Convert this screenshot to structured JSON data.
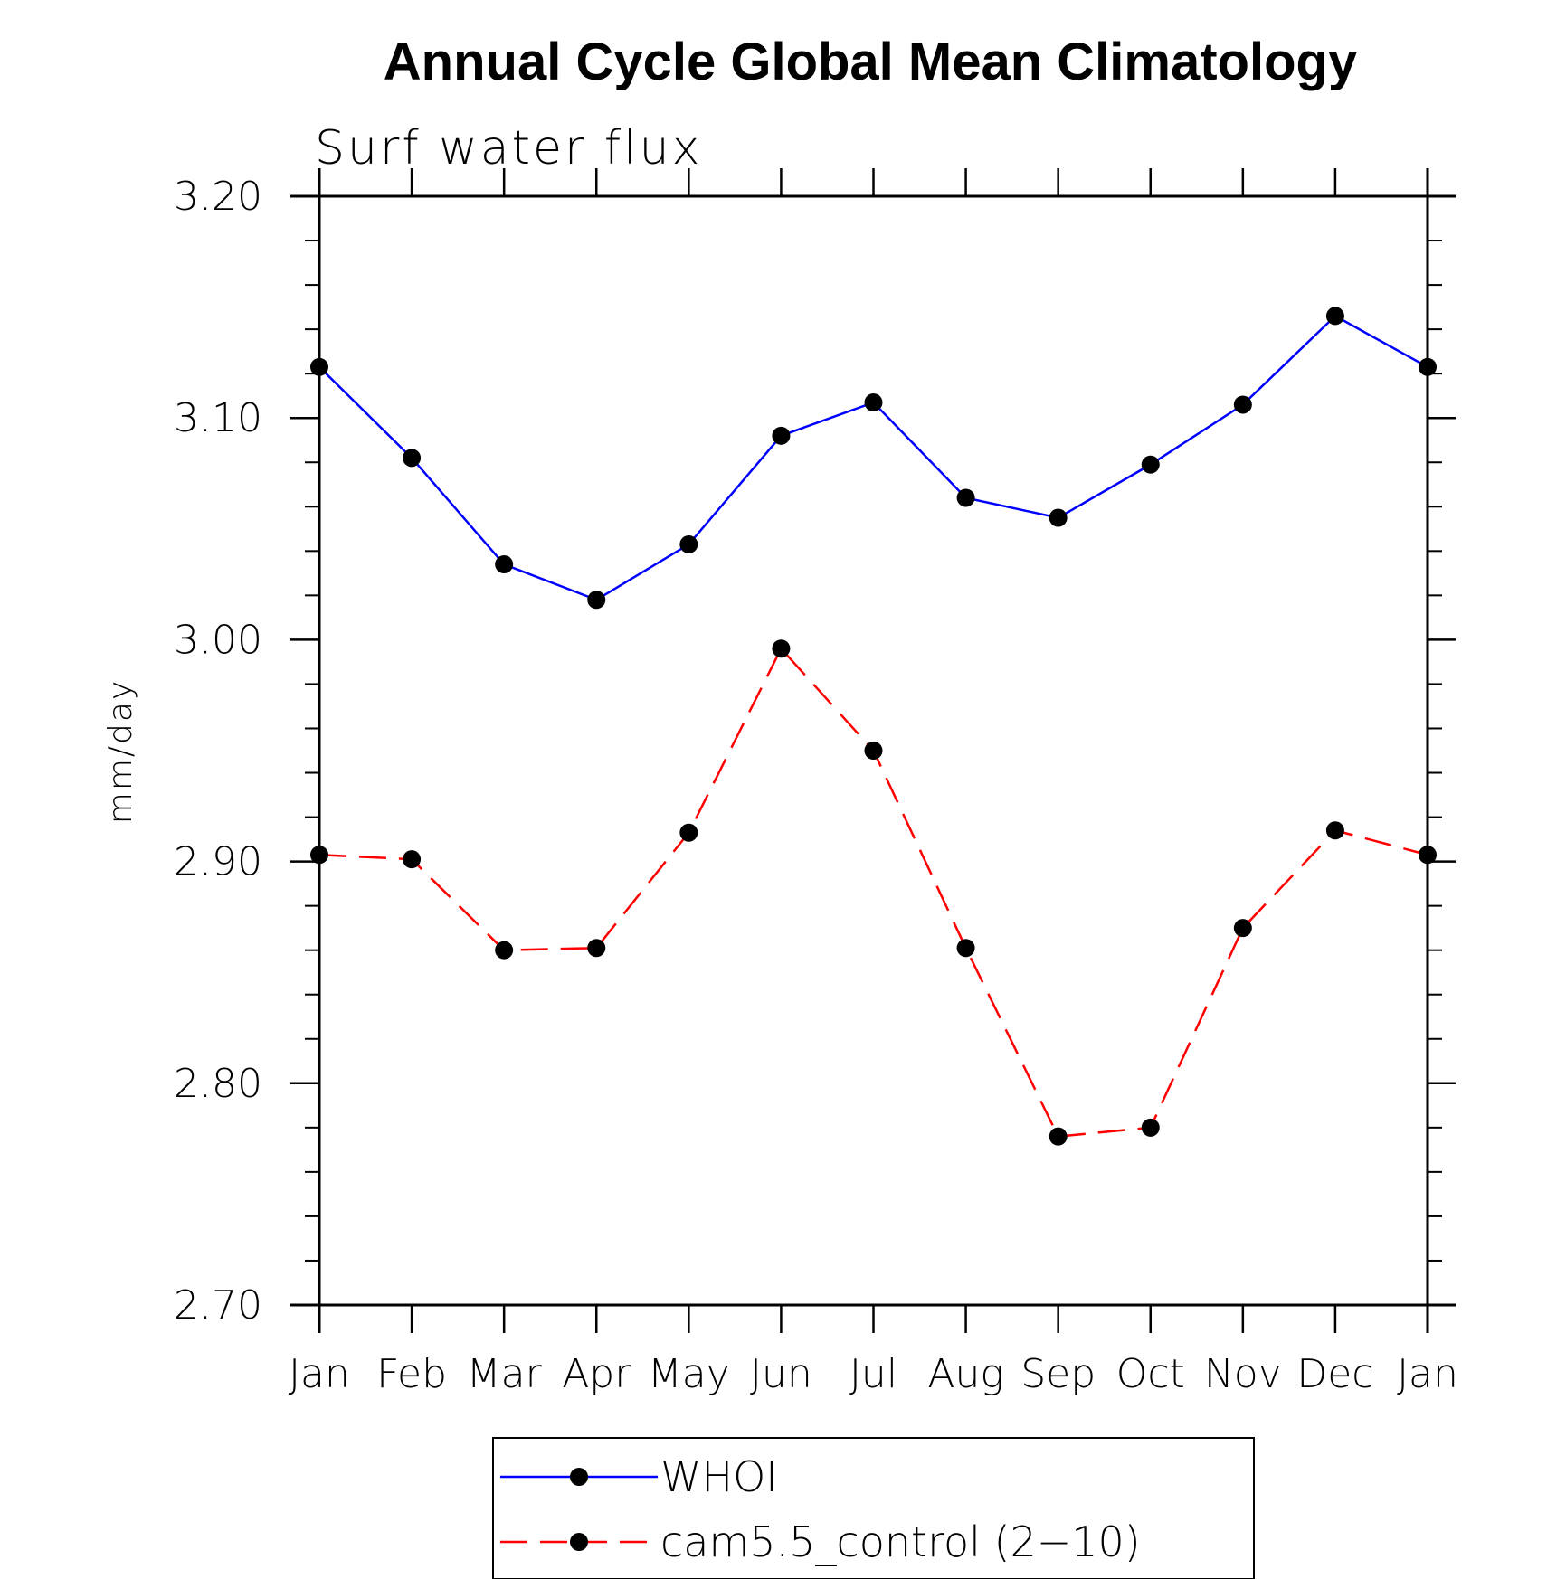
{
  "chart_data": {
    "type": "line",
    "title": "Annual Cycle Global Mean Climatology",
    "subtitle": "Surf  water  flux",
    "xlabel": "",
    "ylabel": "mm/day",
    "categories": [
      "Jan",
      "Feb",
      "Mar",
      "Apr",
      "May",
      "Jun",
      "Jul",
      "Aug",
      "Sep",
      "Oct",
      "Nov",
      "Dec",
      "Jan"
    ],
    "ylim": [
      2.7,
      3.2
    ],
    "yticks": [
      "2.70",
      "2.80",
      "2.90",
      "3.00",
      "3.10",
      "3.20"
    ],
    "ytick_values": [
      2.7,
      2.8,
      2.9,
      3.0,
      3.1,
      3.2
    ],
    "grid": false,
    "legend_position": "bottom-center",
    "series": [
      {
        "name": "WHOI",
        "color": "#0000ff",
        "line_style": "solid",
        "marker": "filled-circle",
        "values": [
          3.123,
          3.082,
          3.034,
          3.018,
          3.043,
          3.092,
          3.107,
          3.064,
          3.055,
          3.079,
          3.106,
          3.146,
          3.123
        ]
      },
      {
        "name": "cam5.5_control (2−10)",
        "color": "#ff0000",
        "line_style": "dashed",
        "marker": "filled-circle",
        "values": [
          2.903,
          2.901,
          2.86,
          2.861,
          2.913,
          2.996,
          2.95,
          2.861,
          2.776,
          2.78,
          2.87,
          2.914,
          2.903
        ]
      }
    ]
  }
}
